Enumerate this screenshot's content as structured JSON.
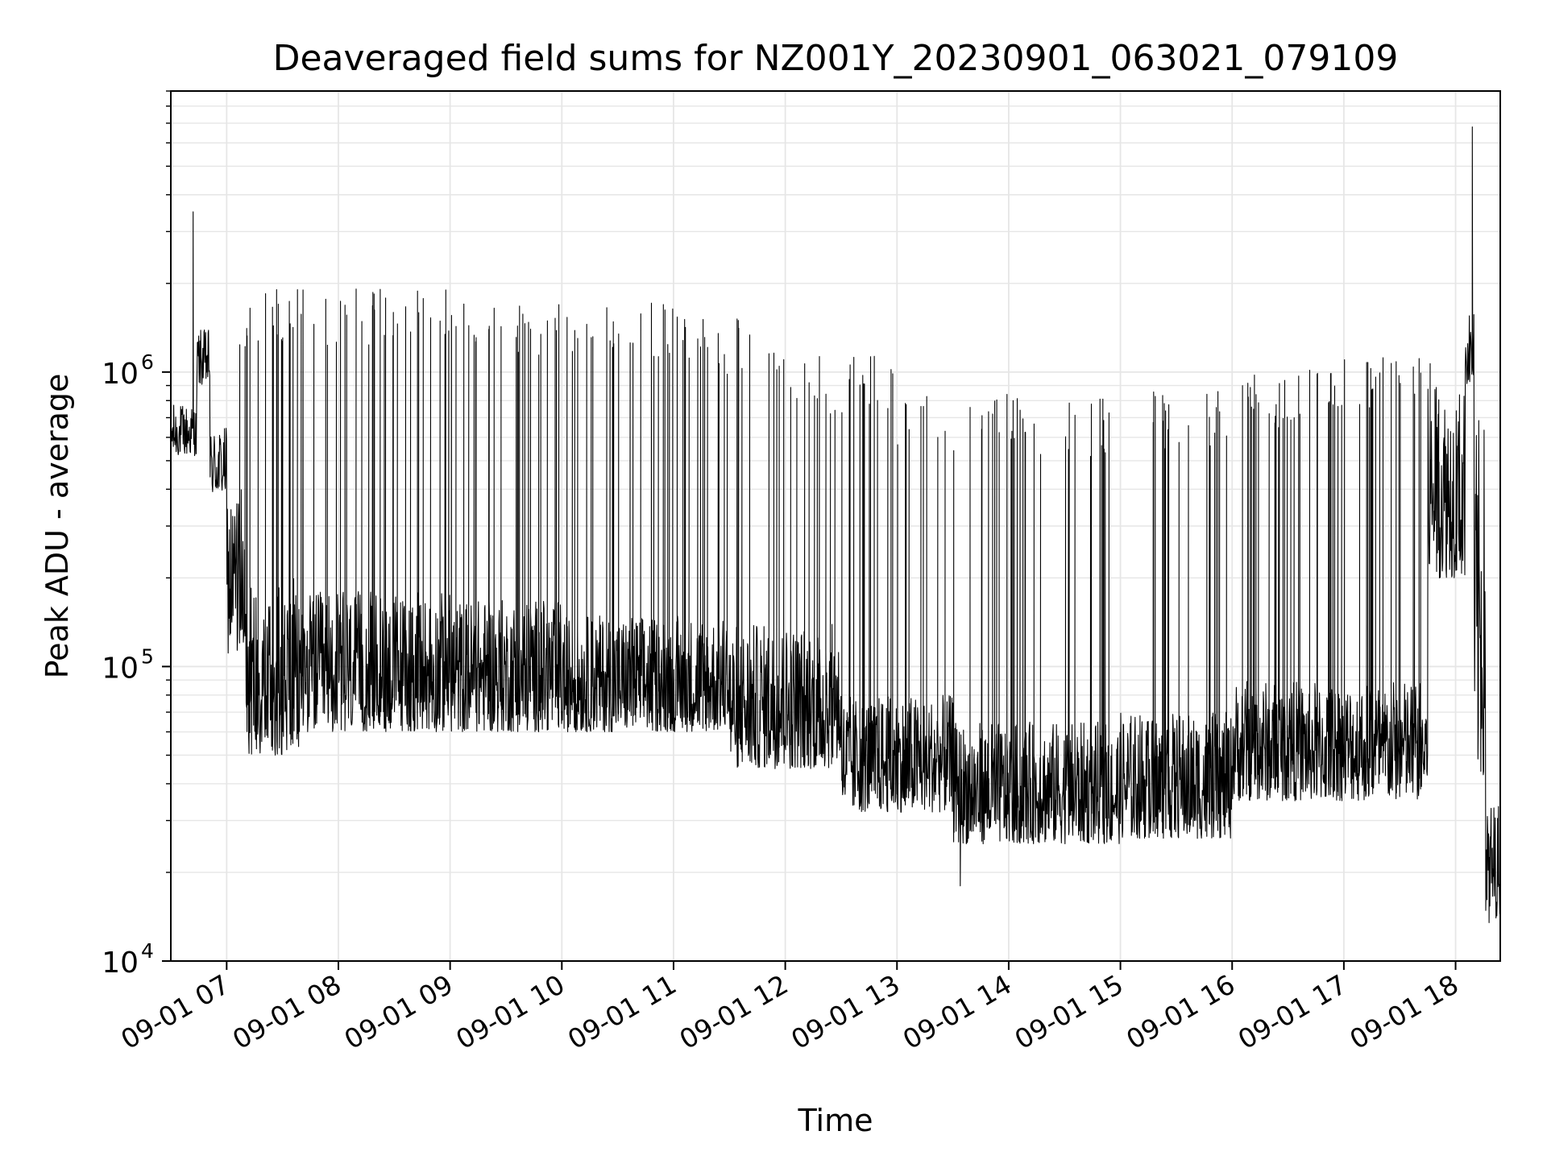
{
  "chart_data": {
    "type": "line",
    "title": "Deaveraged field sums for NZ001Y_20230901_063021_079109",
    "xlabel": "Time",
    "ylabel": "Peak ADU - average",
    "yscale": "log",
    "ylim": [
      10000,
      9000000
    ],
    "xlim": [
      "2023-09-01 06:30",
      "2023-09-01 18:24"
    ],
    "x_tick_labels": [
      "09-01 07",
      "09-01 08",
      "09-01 09",
      "09-01 10",
      "09-01 11",
      "09-01 12",
      "09-01 13",
      "09-01 14",
      "09-01 15",
      "09-01 16",
      "09-01 17",
      "09-01 18"
    ],
    "y_tick_labels": [
      {
        "base": "10",
        "exp": "4"
      },
      {
        "base": "10",
        "exp": "5"
      },
      {
        "base": "10",
        "exp": "6"
      }
    ],
    "grid": true,
    "line_color": "#000000",
    "grid_color": "#e6e6e6",
    "baseline_segments": [
      {
        "start": "2023-09-01 06:30",
        "end": "2023-09-01 06:44",
        "low": 520000,
        "high": 780000
      },
      {
        "start": "2023-09-01 06:44",
        "end": "2023-09-01 06:51",
        "low": 900000,
        "high": 1400000
      },
      {
        "start": "2023-09-01 06:51",
        "end": "2023-09-01 07:00",
        "low": 380000,
        "high": 650000
      },
      {
        "start": "2023-09-01 07:00",
        "end": "2023-09-01 07:10",
        "low": 110000,
        "high": 400000
      },
      {
        "start": "2023-09-01 07:10",
        "end": "2023-09-01 07:40",
        "low": 50000,
        "high": 200000
      },
      {
        "start": "2023-09-01 07:40",
        "end": "2023-09-01 09:00",
        "low": 60000,
        "high": 180000
      },
      {
        "start": "2023-09-01 09:00",
        "end": "2023-09-01 10:00",
        "low": 60000,
        "high": 170000
      },
      {
        "start": "2023-09-01 10:00",
        "end": "2023-09-01 11:30",
        "low": 60000,
        "high": 150000
      },
      {
        "start": "2023-09-01 11:30",
        "end": "2023-09-01 12:30",
        "low": 45000,
        "high": 140000
      },
      {
        "start": "2023-09-01 12:30",
        "end": "2023-09-01 13:30",
        "low": 32000,
        "high": 80000
      },
      {
        "start": "2023-09-01 13:30",
        "end": "2023-09-01 15:00",
        "low": 25000,
        "high": 65000
      },
      {
        "start": "2023-09-01 15:00",
        "end": "2023-09-01 16:00",
        "low": 26000,
        "high": 70000
      },
      {
        "start": "2023-09-01 16:00",
        "end": "2023-09-01 17:45",
        "low": 35000,
        "high": 90000
      },
      {
        "start": "2023-09-01 17:45",
        "end": "2023-09-01 18:05",
        "low": 200000,
        "high": 900000
      },
      {
        "start": "2023-09-01 18:05",
        "end": "2023-09-01 18:10",
        "low": 900000,
        "high": 1600000
      },
      {
        "start": "2023-09-01 18:10",
        "end": "2023-09-01 18:16",
        "low": 40000,
        "high": 700000
      },
      {
        "start": "2023-09-01 18:16",
        "end": "2023-09-01 18:24",
        "low": 14000,
        "high": 35000
      }
    ],
    "spike_bands": [
      {
        "start": "2023-09-01 07:05",
        "end": "2023-09-01 08:00",
        "peak": 1600000
      },
      {
        "start": "2023-09-01 08:00",
        "end": "2023-09-01 09:00",
        "peak": 1600000
      },
      {
        "start": "2023-09-01 09:00",
        "end": "2023-09-01 10:00",
        "peak": 1450000
      },
      {
        "start": "2023-09-01 10:00",
        "end": "2023-09-01 11:00",
        "peak": 1450000
      },
      {
        "start": "2023-09-01 11:00",
        "end": "2023-09-01 12:00",
        "peak": 1300000
      },
      {
        "start": "2023-09-01 12:00",
        "end": "2023-09-01 13:00",
        "peak": 950000
      },
      {
        "start": "2023-09-01 13:00",
        "end": "2023-09-01 14:00",
        "peak": 700000
      },
      {
        "start": "2023-09-01 14:00",
        "end": "2023-09-01 14:55",
        "peak": 680000
      },
      {
        "start": "2023-09-01 15:15",
        "end": "2023-09-01 16:00",
        "peak": 720000
      },
      {
        "start": "2023-09-01 16:00",
        "end": "2023-09-01 17:00",
        "peak": 850000
      },
      {
        "start": "2023-09-01 17:00",
        "end": "2023-09-01 18:00",
        "peak": 950000
      }
    ],
    "notable_points": [
      {
        "x": "2023-09-01 06:42",
        "y": 3500000
      },
      {
        "x": "2023-09-01 07:41",
        "y": 1900000
      },
      {
        "x": "2023-09-01 18:09",
        "y": 6800000
      },
      {
        "x": "2023-09-01 13:34",
        "y": 18000
      },
      {
        "x": "2023-09-01 18:18",
        "y": 13500
      }
    ]
  }
}
